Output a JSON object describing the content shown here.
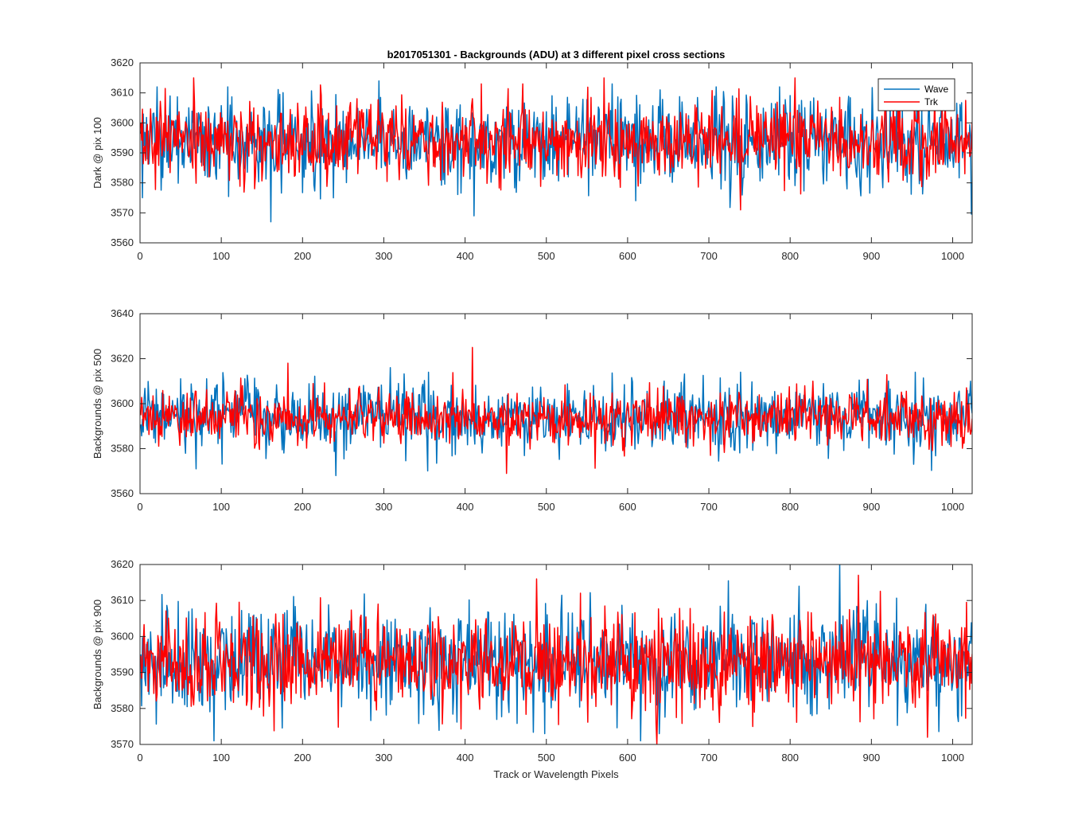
{
  "figure_title": "b2017051301 - Backgrounds (ADU) at 3 different pixel cross sections",
  "colors": {
    "wave": "#0072BD",
    "trk": "#FF0000",
    "axes": "#262626",
    "background": "#ffffff"
  },
  "legend": {
    "entries": [
      "Wave",
      "Trk"
    ],
    "placement": "top-right of first panel"
  },
  "chart_data": [
    {
      "type": "line",
      "title": "b2017051301 - Backgrounds (ADU) at 3 different pixel cross sections",
      "xlabel": "",
      "ylabel": "Dark @ pix 100",
      "xlim": [
        0,
        1024
      ],
      "ylim": [
        3560,
        3620
      ],
      "xticks": [
        0,
        100,
        200,
        300,
        400,
        500,
        600,
        700,
        800,
        900,
        1000
      ],
      "yticks": [
        3560,
        3570,
        3580,
        3590,
        3600,
        3610,
        3620
      ],
      "grid": false,
      "series": [
        {
          "name": "Wave",
          "n_points": 1024,
          "mean": 3594,
          "std": 7.5,
          "min": 3567,
          "max": 3614,
          "extremes": [
            [
              160,
              3567
            ],
            [
              410,
              3569
            ],
            [
              293,
              3614
            ],
            [
              580,
              3613
            ]
          ]
        },
        {
          "name": "Trk",
          "n_points": 1024,
          "mean": 3594,
          "std": 6.5,
          "min": 3571,
          "max": 3615,
          "extremes": [
            [
              65,
              3615
            ],
            [
              570,
              3615
            ],
            [
              805,
              3615
            ],
            [
              738,
              3571
            ]
          ]
        }
      ]
    },
    {
      "type": "line",
      "title": "",
      "xlabel": "",
      "ylabel": "Backgrounds @ pix 500",
      "xlim": [
        0,
        1024
      ],
      "ylim": [
        3560,
        3640
      ],
      "xticks": [
        0,
        100,
        200,
        300,
        400,
        500,
        600,
        700,
        800,
        900,
        1000
      ],
      "yticks": [
        3560,
        3580,
        3600,
        3620,
        3640
      ],
      "grid": false,
      "series": [
        {
          "name": "Wave",
          "n_points": 1024,
          "mean": 3594,
          "std": 7.5,
          "min": 3568,
          "max": 3616,
          "extremes": [
            [
              240,
              3568
            ],
            [
              307,
              3616
            ],
            [
              68,
              3571
            ]
          ]
        },
        {
          "name": "Trk",
          "n_points": 1024,
          "mean": 3594,
          "std": 6.0,
          "min": 3569,
          "max": 3625,
          "extremes": [
            [
              408,
              3625
            ],
            [
              450,
              3569
            ],
            [
              181,
              3618
            ]
          ]
        }
      ]
    },
    {
      "type": "line",
      "title": "",
      "xlabel": "Track or Wavelength Pixels",
      "ylabel": "Backgrounds @ pix 900",
      "xlim": [
        0,
        1024
      ],
      "ylim": [
        3570,
        3620
      ],
      "xticks": [
        0,
        100,
        200,
        300,
        400,
        500,
        600,
        700,
        800,
        900,
        1000
      ],
      "yticks": [
        3570,
        3580,
        3590,
        3600,
        3610,
        3620
      ],
      "grid": false,
      "series": [
        {
          "name": "Wave",
          "n_points": 1024,
          "mean": 3593,
          "std": 7.5,
          "min": 3571,
          "max": 3620,
          "extremes": [
            [
              860,
              3620
            ],
            [
              615,
              3571
            ],
            [
              90,
              3571
            ]
          ]
        },
        {
          "name": "Trk",
          "n_points": 1024,
          "mean": 3593,
          "std": 6.5,
          "min": 3570,
          "max": 3617,
          "extremes": [
            [
              487,
              3616
            ],
            [
              635,
              3570
            ],
            [
              883,
              3617
            ]
          ]
        }
      ]
    }
  ]
}
